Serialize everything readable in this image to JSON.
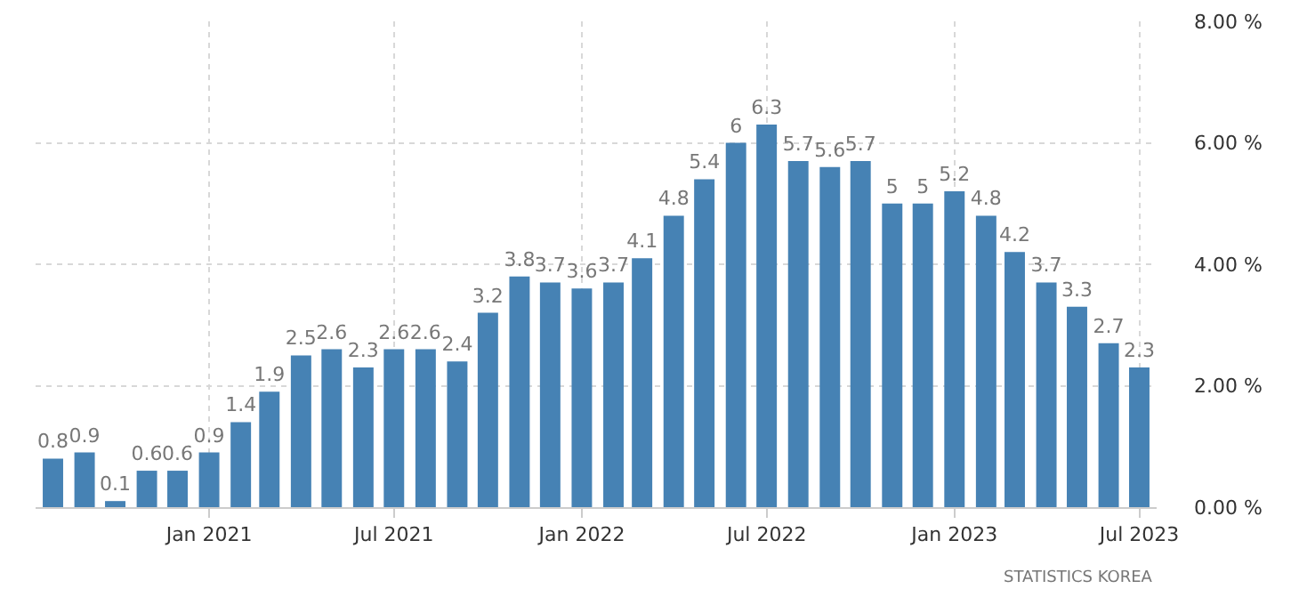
{
  "chart_data": {
    "type": "bar",
    "x": [
      "2020-08",
      "2020-09",
      "2020-10",
      "2020-11",
      "2020-12",
      "2021-01",
      "2021-02",
      "2021-03",
      "2021-04",
      "2021-05",
      "2021-06",
      "2021-07",
      "2021-08",
      "2021-09",
      "2021-10",
      "2021-11",
      "2021-12",
      "2022-01",
      "2022-02",
      "2022-03",
      "2022-04",
      "2022-05",
      "2022-06",
      "2022-07",
      "2022-08",
      "2022-09",
      "2022-10",
      "2022-11",
      "2022-12",
      "2023-01",
      "2023-02",
      "2023-03",
      "2023-04",
      "2023-05",
      "2023-06",
      "2023-07"
    ],
    "values": [
      0.8,
      0.9,
      0.1,
      0.6,
      0.6,
      0.9,
      1.4,
      1.9,
      2.5,
      2.6,
      2.3,
      2.6,
      2.6,
      2.4,
      3.2,
      3.8,
      3.7,
      3.6,
      3.7,
      4.1,
      4.8,
      5.4,
      6,
      6.3,
      5.7,
      5.6,
      5.7,
      5,
      5,
      5.2,
      4.8,
      4.2,
      3.7,
      3.3,
      2.7,
      2.3
    ],
    "color": "#4682b4",
    "data_labels": true,
    "xlim": [
      "2020-07-15",
      "2023-07-18"
    ],
    "xticks": [
      {
        "value": "2021-01",
        "label": "Jan 2021"
      },
      {
        "value": "2021-07",
        "label": "Jul 2021"
      },
      {
        "value": "2022-01",
        "label": "Jan 2022"
      },
      {
        "value": "2022-07",
        "label": "Jul 2022"
      },
      {
        "value": "2023-01",
        "label": "Jan 2023"
      },
      {
        "value": "2023-07",
        "label": "Jul 2023"
      }
    ],
    "ylim": [
      0,
      8
    ],
    "yticks": [
      {
        "value": 0,
        "label": "0.00 %"
      },
      {
        "value": 2,
        "label": "2.00 %"
      },
      {
        "value": 4,
        "label": "4.00 %"
      },
      {
        "value": 6,
        "label": "6.00 %"
      },
      {
        "value": 8,
        "label": "8.00 %"
      }
    ],
    "grid": true,
    "annotations": [
      "STATISTICS KOREA"
    ]
  }
}
